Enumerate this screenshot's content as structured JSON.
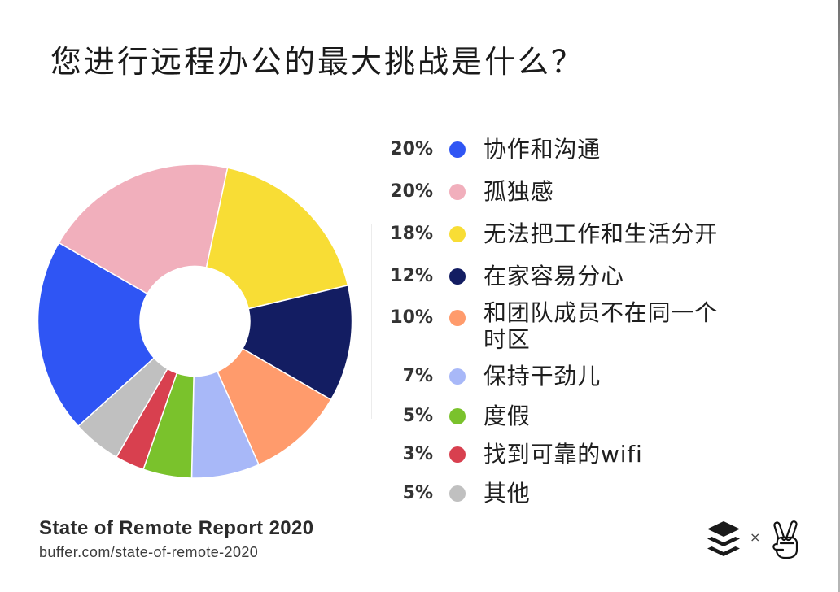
{
  "chart_data": {
    "type": "pie",
    "donut": true,
    "title": "您进行远程办公的最大挑战是什么？",
    "categories": [
      "协作和沟通",
      "孤独感",
      "无法把工作和生活分开",
      "在家容易分心",
      "和团队成员不在同一个时区",
      "保持干劲儿",
      "度假",
      "找到可靠的wifi",
      "其他"
    ],
    "values": [
      20,
      20,
      18,
      12,
      10,
      7,
      5,
      3,
      5
    ],
    "unit": "%",
    "colors": [
      "#2F55F4",
      "#F1AFBC",
      "#F8DD35",
      "#131D62",
      "#FF9B6C",
      "#A8B8F8",
      "#7AC22C",
      "#D8404F",
      "#C0C0C0"
    ],
    "legend": "right"
  },
  "footer": {
    "report_title": "State of Remote Report 2020",
    "url": "buffer.com/state-of-remote-2020"
  },
  "logos": {
    "left_icon": "buffer-logo-icon",
    "separator": "×",
    "right_icon": "peace-hand-icon"
  }
}
